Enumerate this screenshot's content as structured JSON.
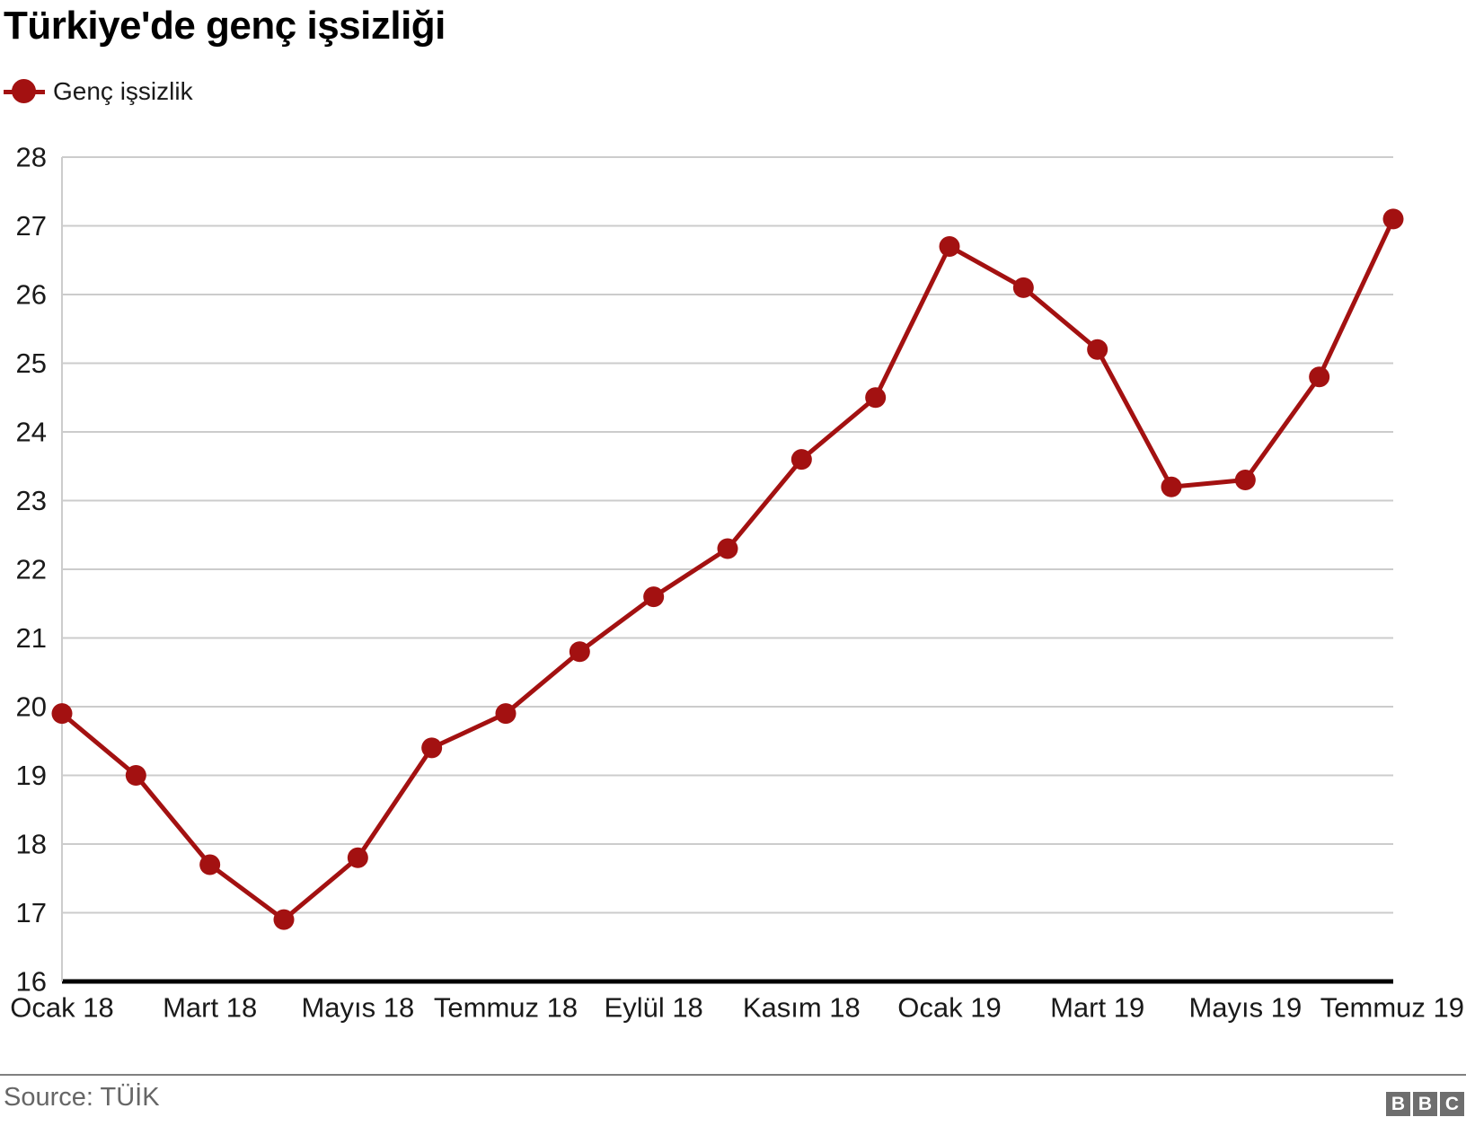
{
  "header": {
    "title": "Türkiye'de genç işsizliği"
  },
  "legend": {
    "label": "Genç işsizlik",
    "marker_icon": "line-dot-icon",
    "marker_color": "#a31111"
  },
  "footer": {
    "source": "Source: TÜİK",
    "logo_letters": [
      "B",
      "B",
      "C"
    ]
  },
  "colors": {
    "line": "#a31111",
    "grid": "#cccccc",
    "baseline_axis": "#000000",
    "tick_text": "#1a1a1a",
    "divider": "#808080",
    "source_text": "#666666",
    "logo_gray": "#6e6e6e"
  },
  "chart_data": {
    "type": "line",
    "title": "Türkiye'de genç işsizliği",
    "xlabel": "",
    "ylabel": "",
    "ylim": [
      16,
      28
    ],
    "grid": "horizontal gridlines on, light gray; bottom baseline black",
    "legend_position": "top-left",
    "marker": "filled circle",
    "n_points": 19,
    "x_range_note": "monthly points from Ocak 18 to Temmuz 19; every second month labeled",
    "x_tick_labels": [
      "Ocak 18",
      "Mart 18",
      "Mayıs 18",
      "Temmuz 18",
      "Eylül 18",
      "Kasım 18",
      "Ocak 19",
      "Mart 19",
      "Mayıs 19",
      "Temmuz 19"
    ],
    "x_tick_indices": [
      0,
      2,
      4,
      6,
      8,
      10,
      12,
      14,
      16,
      18
    ],
    "y_tick_labels": [
      "16",
      "17",
      "18",
      "19",
      "20",
      "21",
      "22",
      "23",
      "24",
      "25",
      "26",
      "27",
      "28"
    ],
    "series": [
      {
        "name": "Genç işsizlik",
        "color": "#a31111",
        "values": [
          19.9,
          19.0,
          17.7,
          16.9,
          17.8,
          19.4,
          19.9,
          20.8,
          21.6,
          22.3,
          23.6,
          24.5,
          26.7,
          26.1,
          25.2,
          23.2,
          23.3,
          24.8,
          27.1
        ]
      }
    ]
  }
}
